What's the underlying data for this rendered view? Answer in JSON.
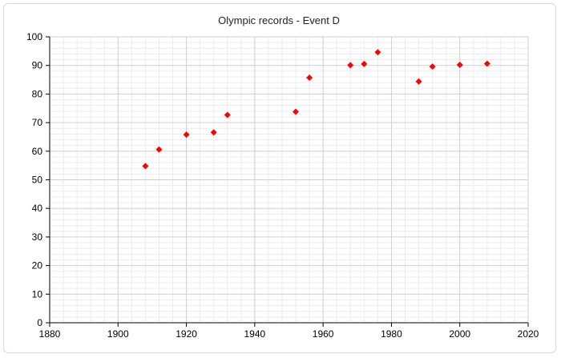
{
  "chart_data": {
    "type": "scatter",
    "title": "Olympic records - Event D",
    "xlabel": "",
    "ylabel": "",
    "xlim": [
      1880,
      2020
    ],
    "ylim": [
      0,
      100
    ],
    "x_ticks": [
      1880,
      1900,
      1920,
      1940,
      1960,
      1980,
      2000,
      2020
    ],
    "y_ticks": [
      0,
      10,
      20,
      30,
      40,
      50,
      60,
      70,
      80,
      90,
      100
    ],
    "x_minor_step": 4,
    "y_minor_step": 2,
    "grid": true,
    "legend": "none",
    "marker": "diamond",
    "color": "#ff0000",
    "points": [
      {
        "x": 1908,
        "y": 54.8
      },
      {
        "x": 1912,
        "y": 60.6
      },
      {
        "x": 1920,
        "y": 65.8
      },
      {
        "x": 1928,
        "y": 66.6
      },
      {
        "x": 1932,
        "y": 72.7
      },
      {
        "x": 1952,
        "y": 73.8
      },
      {
        "x": 1956,
        "y": 85.7
      },
      {
        "x": 1968,
        "y": 90.1
      },
      {
        "x": 1972,
        "y": 90.5
      },
      {
        "x": 1976,
        "y": 94.6
      },
      {
        "x": 1988,
        "y": 84.4
      },
      {
        "x": 1992,
        "y": 89.6
      },
      {
        "x": 2000,
        "y": 90.2
      },
      {
        "x": 2008,
        "y": 90.6
      }
    ]
  }
}
